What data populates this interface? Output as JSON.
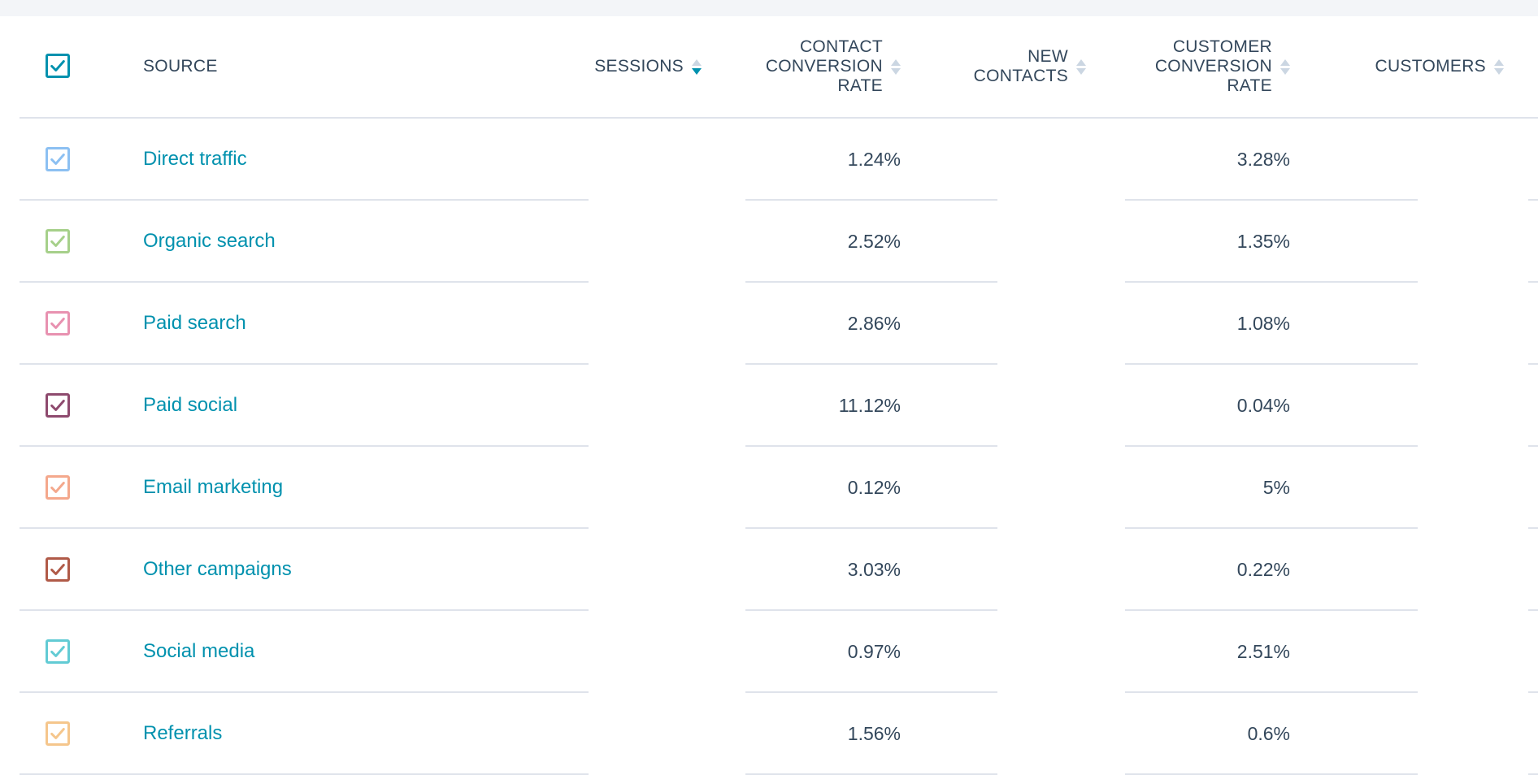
{
  "header": {
    "select_all_color": "#0091ae",
    "source": "SOURCE",
    "sessions": "SESSIONS",
    "contact_conversion_rate": [
      "CONTACT",
      "CONVERSION",
      "RATE"
    ],
    "new_contacts": [
      "NEW",
      "CONTACTS"
    ],
    "customer_conversion_rate": [
      "CUSTOMER",
      "CONVERSION",
      "RATE"
    ],
    "customers": "CUSTOMERS",
    "active_sort": "sessions-desc"
  },
  "rows": [
    {
      "source": "Direct traffic",
      "color": "#8cc0f2",
      "contact_conversion_rate": "1.24%",
      "customer_conversion_rate": "3.28%"
    },
    {
      "source": "Organic search",
      "color": "#a6d08a",
      "contact_conversion_rate": "2.52%",
      "customer_conversion_rate": "1.35%"
    },
    {
      "source": "Paid search",
      "color": "#e891b0",
      "contact_conversion_rate": "2.86%",
      "customer_conversion_rate": "1.08%"
    },
    {
      "source": "Paid social",
      "color": "#8e4a6e",
      "contact_conversion_rate": "11.12%",
      "customer_conversion_rate": "0.04%"
    },
    {
      "source": "Email marketing",
      "color": "#f4a88c",
      "contact_conversion_rate": "0.12%",
      "customer_conversion_rate": "5%"
    },
    {
      "source": "Other campaigns",
      "color": "#b05a48",
      "contact_conversion_rate": "3.03%",
      "customer_conversion_rate": "0.22%"
    },
    {
      "source": "Social media",
      "color": "#62cbd4",
      "contact_conversion_rate": "0.97%",
      "customer_conversion_rate": "2.51%"
    },
    {
      "source": "Referrals",
      "color": "#f5c68c",
      "contact_conversion_rate": "1.56%",
      "customer_conversion_rate": "0.6%"
    }
  ],
  "colors": {
    "link": "#0091ae",
    "text": "#33475b",
    "border": "#dfe3eb",
    "sort_inactive": "#cbd6e2"
  }
}
